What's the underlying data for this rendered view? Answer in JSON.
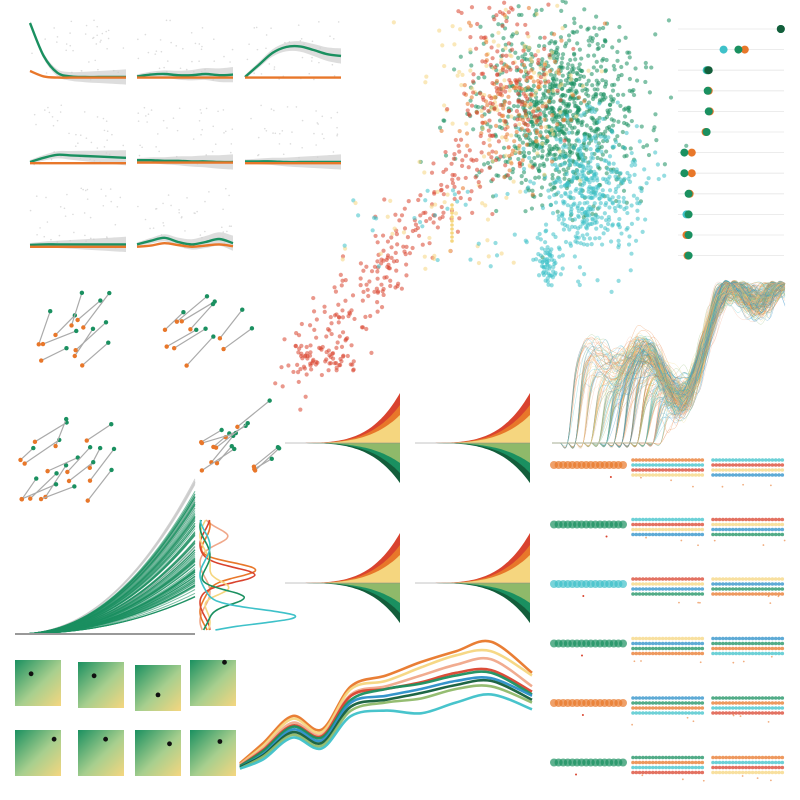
{
  "palette": {
    "green": "#1a9060",
    "orange": "#e8772a",
    "teal": "#3ec1c9",
    "red": "#d9432e",
    "yellow": "#f5d67f",
    "darkgreen": "#135e3b",
    "lightgreen": "#8fb96a",
    "blue": "#2a8fc8",
    "salmon": "#f0a88a",
    "grey": "#bdbdbd",
    "lightgrey": "#dcdcdc"
  },
  "chart_data": [
    {
      "type": "line",
      "panel": "smooth-trend-grid",
      "facets": 8,
      "series": [
        {
          "name": "",
          "color": "green",
          "values_per_facet": [
            [
              0.95,
              0.4,
              0.12,
              0.06,
              0.05,
              0.05,
              0.05,
              0.05
            ],
            [
              0.06,
              0.09,
              0.1,
              0.08,
              0.08,
              0.1,
              0.08,
              0.09
            ],
            [
              0.05,
              0.25,
              0.45,
              0.55,
              0.56,
              0.5,
              0.43,
              0.4
            ],
            [
              0.05,
              0.12,
              0.17,
              0.16,
              0.15,
              0.14,
              0.13,
              0.12
            ],
            [
              0.08,
              0.08,
              0.07,
              0.07,
              0.06,
              0.06,
              0.05,
              0.05
            ],
            [
              0.06,
              0.06,
              0.06,
              0.05,
              0.05,
              0.05,
              0.05,
              0.05
            ],
            [
              0.05,
              0.06,
              0.06,
              0.06,
              0.06,
              0.06,
              0.06,
              0.06
            ],
            [
              0.06,
              0.12,
              0.17,
              0.1,
              0.06,
              0.1,
              0.15,
              0.08
            ]
          ]
        },
        {
          "name": "",
          "color": "orange",
          "values_per_facet": [
            [
              0.15,
              0.06,
              0.04,
              0.04,
              0.04,
              0.04,
              0.04,
              0.04
            ],
            [
              0.04,
              0.04,
              0.04,
              0.04,
              0.04,
              0.04,
              0.04,
              0.04
            ],
            [
              0.04,
              0.04,
              0.04,
              0.04,
              0.04,
              0.04,
              0.04,
              0.04
            ],
            [
              0.03,
              0.03,
              0.03,
              0.03,
              0.03,
              0.03,
              0.03,
              0.03
            ],
            [
              0.04,
              0.04,
              0.04,
              0.04,
              0.04,
              0.04,
              0.04,
              0.04
            ],
            [
              0.03,
              0.03,
              0.03,
              0.03,
              0.03,
              0.03,
              0.03,
              0.03
            ],
            [
              0.02,
              0.02,
              0.02,
              0.02,
              0.02,
              0.02,
              0.02,
              0.02
            ],
            [
              0.02,
              0.04,
              0.08,
              0.05,
              0.02,
              0.04,
              0.06,
              0.03
            ]
          ]
        }
      ]
    },
    {
      "type": "scatter",
      "panel": "embedding-scatter",
      "series": [
        {
          "name": "",
          "color": "green",
          "count": 900
        },
        {
          "name": "",
          "color": "teal",
          "count": 450
        },
        {
          "name": "",
          "color": "red",
          "count": 420
        },
        {
          "name": "",
          "color": "yellow",
          "count": 220
        },
        {
          "name": "",
          "color": "orange",
          "count": 180
        }
      ]
    },
    {
      "type": "scatter",
      "panel": "dot-ranking",
      "rows": [
        {
          "green": 0.97,
          "orange": null,
          "teal": null,
          "dark": 0.97
        },
        {
          "green": 0.57,
          "orange": 0.63,
          "teal": 0.43,
          "dark": null
        },
        {
          "green": 0.28,
          "orange": null,
          "teal": 0.27,
          "dark": 0.29
        },
        {
          "green": 0.28,
          "orange": 0.29,
          "teal": null,
          "dark": null
        },
        {
          "green": 0.29,
          "orange": 0.3,
          "teal": null,
          "dark": null
        },
        {
          "green": 0.27,
          "orange": 0.26,
          "teal": null,
          "dark": null
        },
        {
          "green": 0.06,
          "orange": 0.13,
          "teal": null,
          "dark": null
        },
        {
          "green": 0.06,
          "orange": 0.13,
          "teal": null,
          "dark": null
        },
        {
          "green": 0.1,
          "orange": 0.11,
          "teal": null,
          "dark": null
        },
        {
          "green": 0.1,
          "orange": null,
          "teal": 0.08,
          "dark": null
        },
        {
          "green": 0.1,
          "orange": 0.08,
          "teal": null,
          "dark": null
        },
        {
          "green": 0.1,
          "orange": 0.09,
          "teal": null,
          "dark": null
        }
      ]
    },
    {
      "type": "scatter",
      "panel": "paired-slope",
      "facets": 4,
      "pairs_per_facet": [
        10,
        9,
        16,
        12
      ]
    },
    {
      "type": "line",
      "panel": "many-trajectories",
      "lines": 260,
      "colors": [
        "blue",
        "teal",
        "orange",
        "yellow",
        "salmon",
        "lightgreen"
      ]
    },
    {
      "type": "area",
      "panel": "mirrored-stream",
      "facets": 4,
      "upper_layers": [
        "red",
        "orange",
        "yellow"
      ],
      "lower_layers": [
        "darkgreen",
        "green",
        "lightgreen"
      ]
    },
    {
      "type": "line",
      "panel": "cumulative-bundle",
      "lines": 120,
      "series": [
        {
          "name": "",
          "color": "green"
        },
        {
          "name": "",
          "color": "grey"
        }
      ]
    },
    {
      "type": "line",
      "panel": "vertical-densities",
      "series": [
        {
          "name": "",
          "color": "salmon"
        },
        {
          "name": "",
          "color": "orange"
        },
        {
          "name": "",
          "color": "red"
        },
        {
          "name": "",
          "color": "yellow"
        },
        {
          "name": "",
          "color": "green"
        },
        {
          "name": "",
          "color": "teal"
        }
      ]
    },
    {
      "type": "heatmap",
      "panel": "gradient-tiles",
      "tiles": [
        {
          "best": [
            0.35,
            0.3
          ]
        },
        {
          "best": [
            0.35,
            0.3
          ]
        },
        {
          "best": [
            0.5,
            0.65
          ]
        },
        {
          "best": [
            0.75,
            0.05
          ]
        },
        {
          "best": [
            0.85,
            0.2
          ]
        },
        {
          "best": [
            0.6,
            0.2
          ]
        },
        {
          "best": [
            0.75,
            0.3
          ]
        },
        {
          "best": [
            0.65,
            0.25
          ]
        }
      ]
    },
    {
      "type": "line",
      "panel": "smooth-overlay",
      "x": [
        0,
        0.08,
        0.18,
        0.28,
        0.38,
        0.5,
        0.62,
        0.74,
        0.86,
        1
      ],
      "series": [
        {
          "name": "",
          "color": "orange",
          "values": [
            0.05,
            0.2,
            0.4,
            0.3,
            0.62,
            0.7,
            0.8,
            0.88,
            0.95,
            0.72
          ]
        },
        {
          "name": "",
          "color": "yellow",
          "values": [
            0.04,
            0.18,
            0.38,
            0.28,
            0.6,
            0.66,
            0.76,
            0.85,
            0.88,
            0.7
          ]
        },
        {
          "name": "",
          "color": "salmon",
          "values": [
            0.04,
            0.16,
            0.35,
            0.26,
            0.56,
            0.62,
            0.7,
            0.78,
            0.82,
            0.62
          ]
        },
        {
          "name": "",
          "color": "red",
          "values": [
            0.03,
            0.15,
            0.33,
            0.25,
            0.55,
            0.6,
            0.65,
            0.72,
            0.74,
            0.58
          ]
        },
        {
          "name": "",
          "color": "green",
          "values": [
            0.03,
            0.14,
            0.32,
            0.24,
            0.52,
            0.6,
            0.64,
            0.7,
            0.72,
            0.56
          ]
        },
        {
          "name": "",
          "color": "blue",
          "values": [
            0.02,
            0.12,
            0.3,
            0.22,
            0.5,
            0.55,
            0.6,
            0.66,
            0.68,
            0.55
          ]
        },
        {
          "name": "",
          "color": "darkgreen",
          "values": [
            0.02,
            0.11,
            0.28,
            0.2,
            0.47,
            0.52,
            0.57,
            0.63,
            0.66,
            0.52
          ]
        },
        {
          "name": "",
          "color": "lightgreen",
          "values": [
            0.01,
            0.1,
            0.26,
            0.18,
            0.44,
            0.5,
            0.53,
            0.6,
            0.62,
            0.5
          ]
        },
        {
          "name": "",
          "color": "teal",
          "values": [
            0.01,
            0.08,
            0.24,
            0.16,
            0.4,
            0.44,
            0.42,
            0.5,
            0.56,
            0.45
          ]
        }
      ]
    },
    {
      "type": "scatter",
      "panel": "strip-grid",
      "rows": 6,
      "columns": 3,
      "colors": [
        "green",
        "orange",
        "teal",
        "red",
        "yellow",
        "blue"
      ]
    }
  ]
}
